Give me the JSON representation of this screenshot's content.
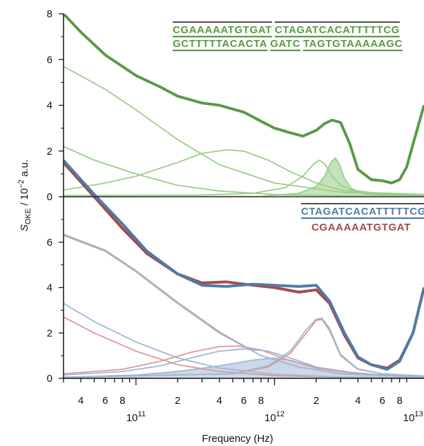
{
  "chart_data": {
    "type": "line",
    "xlabel": "Frequency (Hz)",
    "ylabel": "S_OKE / 10^-2 a.u.",
    "xscale": "log",
    "xlim": [
      30000000000,
      12000000000000
    ],
    "x_ticks": {
      "major": [
        {
          "value": 100000000000,
          "mantissa": "10",
          "exponent": "11"
        },
        {
          "value": 1000000000000,
          "mantissa": "10",
          "exponent": "12"
        },
        {
          "value": 10000000000000,
          "mantissa": "10",
          "exponent": "13"
        }
      ],
      "minor_labels": [
        {
          "value": 40000000000,
          "label": "4"
        },
        {
          "value": 60000000000,
          "label": "6"
        },
        {
          "value": 80000000000,
          "label": "8"
        },
        {
          "value": 200000000000,
          "label": "2"
        },
        {
          "value": 400000000000,
          "label": "4"
        },
        {
          "value": 600000000000,
          "label": "6"
        },
        {
          "value": 800000000000,
          "label": "8"
        },
        {
          "value": 2000000000000,
          "label": "2"
        },
        {
          "value": 4000000000000,
          "label": "4"
        },
        {
          "value": 6000000000000,
          "label": "6"
        },
        {
          "value": 8000000000000,
          "label": "8"
        }
      ]
    },
    "panels": [
      {
        "id": "top",
        "ylim": [
          0,
          8
        ],
        "yticks": [
          "0",
          "2",
          "4",
          "6",
          "8"
        ],
        "sequence_top": [
          "CGAAAAATGTGAT",
          "CTAGATCACATTTTTCG"
        ],
        "sequence_bottom": [
          "GCTTTTTACACTA",
          "GATC",
          "TAGTGTAAAAAGC"
        ],
        "sequence_color": "#5a9a45",
        "series": [
          {
            "role": "spectrum",
            "color": "#5a9a45",
            "x": [
              30000000000,
              40000000000,
              60000000000,
              100000000000,
              150000000000,
              200000000000,
              300000000000,
              400000000000,
              600000000000,
              800000000000,
              1000000000000,
              1300000000000,
              1600000000000,
              2000000000000,
              2300000000000,
              2600000000000,
              3000000000000,
              3500000000000,
              4000000000000,
              5000000000000,
              6000000000000,
              7000000000000,
              8000000000000,
              9000000000000,
              10000000000000,
              12000000000000
            ],
            "y": [
              8.0,
              7.2,
              6.2,
              5.3,
              4.8,
              4.4,
              4.1,
              4.0,
              3.7,
              3.3,
              3.0,
              2.8,
              2.65,
              2.9,
              3.2,
              3.35,
              3.25,
              2.3,
              1.2,
              0.75,
              0.7,
              0.6,
              0.75,
              1.3,
              2.3,
              4.0
            ]
          },
          {
            "role": "component",
            "color": "#9ccc8c",
            "x": [
              30000000000,
              60000000000,
              100000000000,
              200000000000,
              400000000000,
              1000000000000,
              3000000000000,
              12000000000000
            ],
            "y": [
              5.7,
              4.7,
              3.8,
              2.5,
              1.4,
              0.6,
              0.2,
              0.05
            ]
          },
          {
            "role": "component",
            "color": "#9ccc8c",
            "x": [
              30000000000,
              50000000000,
              100000000000,
              200000000000,
              400000000000,
              1000000000000,
              3000000000000,
              12000000000000
            ],
            "y": [
              2.2,
              1.6,
              1.0,
              0.5,
              0.25,
              0.1,
              0.04,
              0.02
            ]
          },
          {
            "role": "component",
            "color": "#9ccc8c",
            "x": [
              30000000000,
              60000000000,
              100000000000,
              200000000000,
              300000000000,
              450000000000,
              600000000000,
              900000000000,
              1300000000000,
              2000000000000,
              3000000000000,
              5000000000000,
              12000000000000
            ],
            "y": [
              0.3,
              0.6,
              0.9,
              1.5,
              1.9,
              2.05,
              2.0,
              1.6,
              1.1,
              0.6,
              0.3,
              0.12,
              0.05
            ]
          },
          {
            "role": "component",
            "color": "#9ccc8c",
            "x": [
              30000000000,
              300000000000,
              700000000000,
              1200000000000,
              1600000000000,
              1900000000000,
              2100000000000,
              2300000000000,
              2600000000000,
              3000000000000,
              3600000000000,
              5000000000000,
              12000000000000
            ],
            "y": [
              0.05,
              0.08,
              0.15,
              0.4,
              0.9,
              1.4,
              1.6,
              1.45,
              0.9,
              0.5,
              0.3,
              0.18,
              0.1
            ]
          },
          {
            "role": "shaded-component",
            "color": "#9ccc8c",
            "fill": "#bde0b0",
            "x": [
              30000000000,
              800000000000,
              1500000000000,
              2000000000000,
              2300000000000,
              2550000000000,
              2750000000000,
              2950000000000,
              3200000000000,
              3600000000000,
              4500000000000,
              12000000000000
            ],
            "y": [
              0.0,
              0.02,
              0.15,
              0.45,
              0.9,
              1.5,
              1.7,
              1.4,
              0.8,
              0.35,
              0.12,
              0.02
            ]
          }
        ]
      },
      {
        "id": "bottom",
        "ylim": [
          0,
          8
        ],
        "yticks": [
          "0",
          "2",
          "4",
          "6"
        ],
        "sequence_top": [
          "CTAGATCACATTTTTCG"
        ],
        "sequence_top_color": "#4f7ba8",
        "sequence_bottom": [
          "CGAAAAATGTGAT"
        ],
        "sequence_bottom_color": "#a64a48",
        "series": [
          {
            "role": "spectrum",
            "color": "#a64a48",
            "x": [
              30000000000,
              50000000000,
              80000000000,
              120000000000,
              200000000000,
              300000000000,
              450000000000,
              700000000000,
              1000000000000,
              1500000000000,
              2000000000000,
              2500000000000,
              3200000000000,
              4000000000000,
              5000000000000,
              6500000000000,
              8000000000000,
              10000000000000,
              12000000000000
            ],
            "y": [
              9.5,
              8.0,
              6.6,
              5.5,
              4.6,
              4.2,
              4.25,
              4.1,
              4.0,
              3.8,
              3.9,
              3.3,
              1.9,
              0.9,
              0.6,
              0.45,
              0.8,
              2.0,
              4.0
            ]
          },
          {
            "role": "spectrum",
            "color": "#4f7ba8",
            "x": [
              30000000000,
              50000000000,
              80000000000,
              120000000000,
              200000000000,
              300000000000,
              450000000000,
              700000000000,
              1000000000000,
              1500000000000,
              2000000000000,
              2500000000000,
              3200000000000,
              4000000000000,
              5000000000000,
              6500000000000,
              8000000000000,
              10000000000000,
              12000000000000
            ],
            "y": [
              9.6,
              8.1,
              6.8,
              5.6,
              4.6,
              4.1,
              4.05,
              4.15,
              4.1,
              4.05,
              4.1,
              3.4,
              2.0,
              0.95,
              0.6,
              0.4,
              0.75,
              2.0,
              4.0
            ]
          },
          {
            "role": "component",
            "color": "#d89a98",
            "x": [
              30000000000,
              60000000000,
              100000000000,
              200000000000,
              400000000000,
              800000000000,
              1500000000000,
              3000000000000,
              12000000000000
            ],
            "y": [
              6.3,
              5.6,
              4.7,
              3.3,
              2.0,
              1.0,
              0.5,
              0.2,
              0.05
            ]
          },
          {
            "role": "component",
            "color": "#9fb7d6",
            "x": [
              30000000000,
              60000000000,
              100000000000,
              200000000000,
              400000000000,
              800000000000,
              1500000000000,
              3000000000000,
              12000000000000
            ],
            "y": [
              6.35,
              5.65,
              4.75,
              3.35,
              2.05,
              1.0,
              0.5,
              0.2,
              0.05
            ]
          },
          {
            "role": "component",
            "color": "#d89a98",
            "x": [
              30000000000,
              50000000000,
              100000000000,
              200000000000,
              400000000000,
              1000000000000,
              3000000000000,
              12000000000000
            ],
            "y": [
              2.7,
              2.0,
              1.2,
              0.6,
              0.3,
              0.12,
              0.05,
              0.02
            ]
          },
          {
            "role": "component",
            "color": "#9fb7d6",
            "x": [
              30000000000,
              50000000000,
              100000000000,
              200000000000,
              400000000000,
              1000000000000,
              3000000000000,
              12000000000000
            ],
            "y": [
              3.3,
              2.5,
              1.6,
              0.9,
              0.45,
              0.18,
              0.06,
              0.02
            ]
          },
          {
            "role": "component",
            "color": "#d89a98",
            "x": [
              30000000000,
              80000000000,
              150000000000,
              250000000000,
              400000000000,
              550000000000,
              800000000000,
              1200000000000,
              2000000000000,
              4000000000000,
              12000000000000
            ],
            "y": [
              0.2,
              0.4,
              0.75,
              1.15,
              1.4,
              1.42,
              1.25,
              0.85,
              0.45,
              0.2,
              0.05
            ]
          },
          {
            "role": "component",
            "color": "#9fb7d6",
            "x": [
              30000000000,
              80000000000,
              150000000000,
              250000000000,
              400000000000,
              600000000000,
              900000000000,
              1300000000000,
              2000000000000,
              4000000000000,
              12000000000000
            ],
            "y": [
              0.15,
              0.3,
              0.55,
              0.9,
              1.2,
              1.3,
              1.2,
              0.9,
              0.5,
              0.22,
              0.05
            ]
          },
          {
            "role": "component",
            "color": "#d89a98",
            "x": [
              30000000000,
              500000000000,
              900000000000,
              1300000000000,
              1700000000000,
              2000000000000,
              2200000000000,
              2500000000000,
              3000000000000,
              4000000000000,
              6000000000000,
              12000000000000
            ],
            "y": [
              0.05,
              0.2,
              0.5,
              1.1,
              2.0,
              2.55,
              2.6,
              2.1,
              1.0,
              0.4,
              0.2,
              0.1
            ]
          },
          {
            "role": "component",
            "color": "#9fb7d6",
            "x": [
              30000000000,
              500000000000,
              900000000000,
              1300000000000,
              1700000000000,
              2000000000000,
              2200000000000,
              2500000000000,
              3000000000000,
              4000000000000,
              6000000000000,
              12000000000000
            ],
            "y": [
              0.05,
              0.2,
              0.55,
              1.2,
              2.15,
              2.6,
              2.65,
              2.2,
              1.05,
              0.42,
              0.2,
              0.1
            ]
          },
          {
            "role": "shaded-component",
            "color": "#9fb7d6",
            "fill": "#c6d4e6",
            "x": [
              30000000000,
              100000000000,
              200000000000,
              400000000000,
              700000000000,
              1000000000000,
              1300000000000,
              1800000000000,
              3000000000000,
              6000000000000,
              12000000000000
            ],
            "y": [
              0.05,
              0.15,
              0.3,
              0.55,
              0.8,
              0.9,
              0.8,
              0.55,
              0.3,
              0.15,
              0.08
            ]
          }
        ]
      }
    ]
  }
}
